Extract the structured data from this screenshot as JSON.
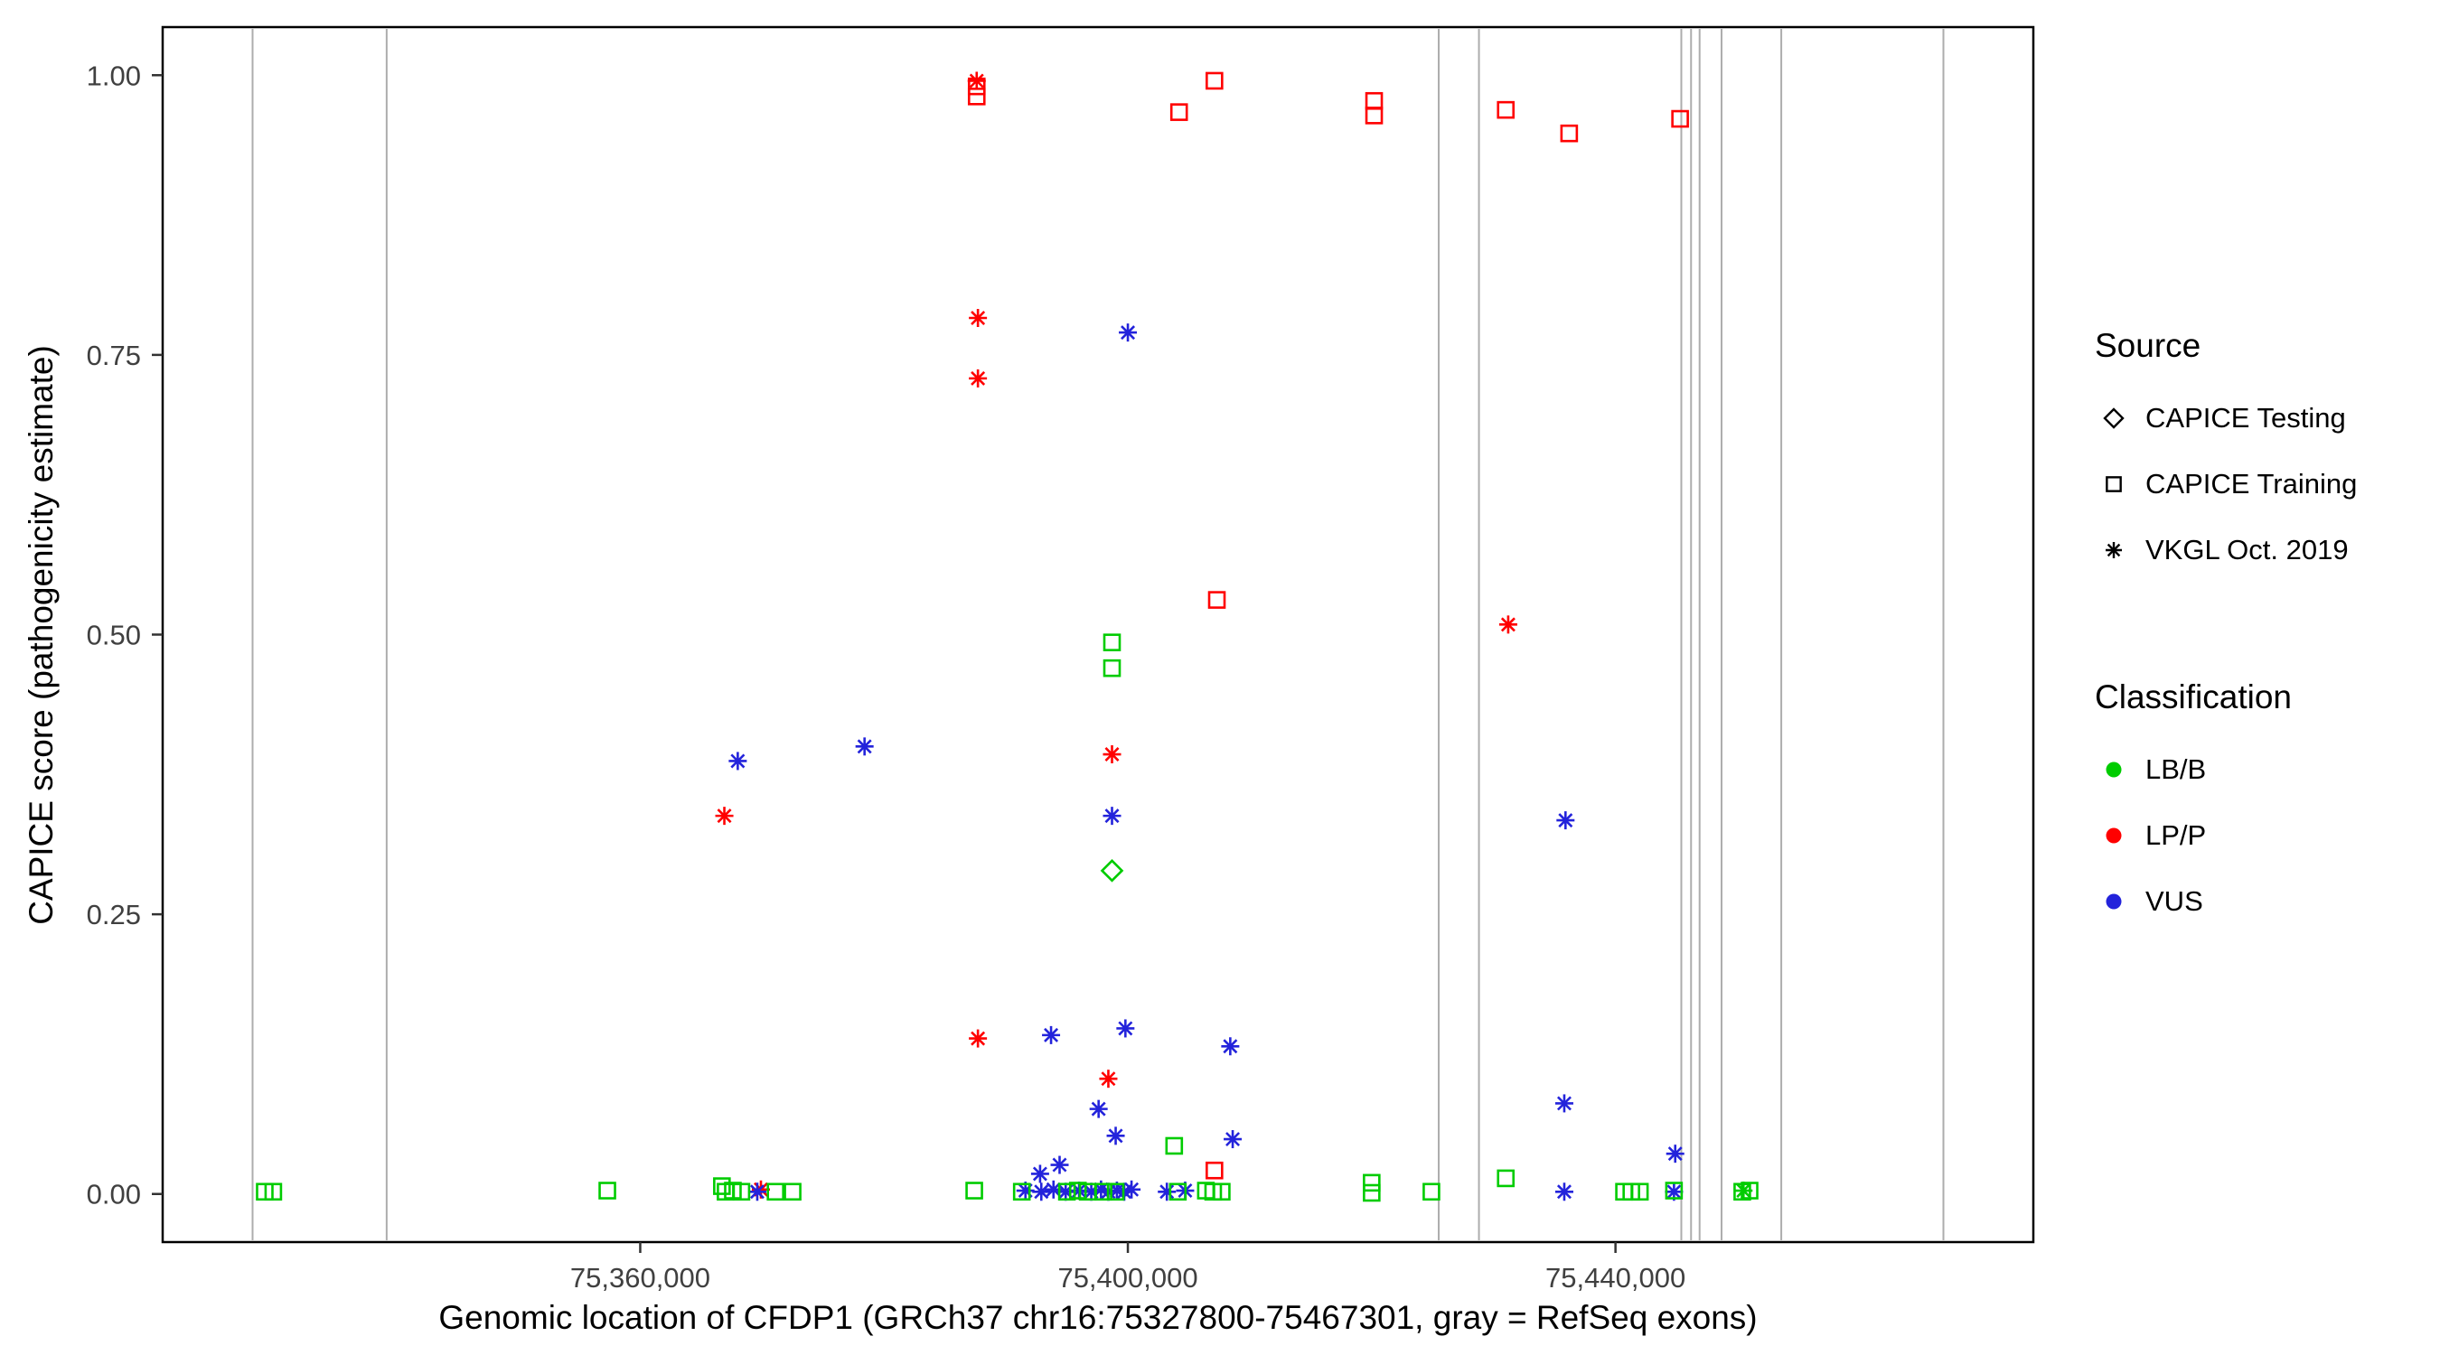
{
  "colors": {
    "LB/B": "#00CC00",
    "LP/P": "#FF0000",
    "VUS": "#2323DB",
    "exon": "#ADADAD",
    "tick_text": "#404040",
    "panel_border": "#000000",
    "legend_icon": "#000000"
  },
  "legend": {
    "source": {
      "title": "Source",
      "items": [
        {
          "shape": "diamond",
          "label": "CAPICE Testing"
        },
        {
          "shape": "square",
          "label": "CAPICE Training"
        },
        {
          "shape": "asterisk",
          "label": "VKGL Oct. 2019"
        }
      ]
    },
    "classification": {
      "title": "Classification",
      "items": [
        {
          "color": "#00CC00",
          "label": "LB/B"
        },
        {
          "color": "#FF0000",
          "label": "LP/P"
        },
        {
          "color": "#2323DB",
          "label": "VUS"
        }
      ]
    }
  },
  "chart_data": {
    "type": "scatter",
    "title": "",
    "xlabel": "Genomic location of CFDP1 (GRCh37 chr16:75327800-75467301, gray = RefSeq exons)",
    "ylabel": "CAPICE score (pathogenicity estimate)",
    "xlim": [
      75320825,
      75474276
    ],
    "ylim": [
      -0.043,
      1.043
    ],
    "x_ticks": [
      {
        "value": 75360000,
        "label": "75,360,000"
      },
      {
        "value": 75400000,
        "label": "75,400,000"
      },
      {
        "value": 75440000,
        "label": "75,440,000"
      }
    ],
    "y_ticks": [
      {
        "value": 0.0,
        "label": "0.00"
      },
      {
        "value": 0.25,
        "label": "0.25"
      },
      {
        "value": 0.5,
        "label": "0.50"
      },
      {
        "value": 0.75,
        "label": "0.75"
      },
      {
        "value": 1.0,
        "label": "1.00"
      }
    ],
    "exon_positions": [
      75328200,
      75339200,
      75425500,
      75428800,
      75445400,
      75446200,
      75446900,
      75448700,
      75453600,
      75466900
    ],
    "shape_to_source": {
      "diamond": "CAPICE Testing",
      "square": "CAPICE Training",
      "asterisk": "VKGL Oct. 2019"
    },
    "points_format": [
      "x_genomic",
      "capice_score",
      "shape",
      "classification"
    ],
    "points": [
      [
        75387600,
        0.995,
        "asterisk",
        "LP/P"
      ],
      [
        75387600,
        0.99,
        "square",
        "LP/P"
      ],
      [
        75387600,
        0.981,
        "square",
        "LP/P"
      ],
      [
        75404200,
        0.967,
        "square",
        "LP/P"
      ],
      [
        75407100,
        0.995,
        "square",
        "LP/P"
      ],
      [
        75420200,
        0.977,
        "square",
        "LP/P"
      ],
      [
        75420200,
        0.964,
        "square",
        "LP/P"
      ],
      [
        75431000,
        0.969,
        "square",
        "LP/P"
      ],
      [
        75436200,
        0.948,
        "square",
        "LP/P"
      ],
      [
        75445300,
        0.961,
        "square",
        "LP/P"
      ],
      [
        75387700,
        0.783,
        "asterisk",
        "LP/P"
      ],
      [
        75387700,
        0.729,
        "asterisk",
        "LP/P"
      ],
      [
        75407300,
        0.531,
        "square",
        "LP/P"
      ],
      [
        75431200,
        0.509,
        "asterisk",
        "LP/P"
      ],
      [
        75366900,
        0.338,
        "asterisk",
        "LP/P"
      ],
      [
        75398700,
        0.393,
        "asterisk",
        "LP/P"
      ],
      [
        75387700,
        0.139,
        "asterisk",
        "LP/P"
      ],
      [
        75398400,
        0.103,
        "asterisk",
        "LP/P"
      ],
      [
        75407100,
        0.021,
        "square",
        "LP/P"
      ],
      [
        75369900,
        0.004,
        "asterisk",
        "LP/P"
      ],
      [
        75368000,
        0.387,
        "asterisk",
        "VUS"
      ],
      [
        75378400,
        0.4,
        "asterisk",
        "VUS"
      ],
      [
        75400000,
        0.77,
        "asterisk",
        "VUS"
      ],
      [
        75398700,
        0.338,
        "asterisk",
        "VUS"
      ],
      [
        75393700,
        0.142,
        "asterisk",
        "VUS"
      ],
      [
        75399800,
        0.148,
        "asterisk",
        "VUS"
      ],
      [
        75408400,
        0.132,
        "asterisk",
        "VUS"
      ],
      [
        75397600,
        0.076,
        "asterisk",
        "VUS"
      ],
      [
        75399000,
        0.052,
        "asterisk",
        "VUS"
      ],
      [
        75408600,
        0.049,
        "asterisk",
        "VUS"
      ],
      [
        75435900,
        0.334,
        "asterisk",
        "VUS"
      ],
      [
        75435800,
        0.081,
        "asterisk",
        "VUS"
      ],
      [
        75444900,
        0.036,
        "asterisk",
        "VUS"
      ],
      [
        75394400,
        0.026,
        "asterisk",
        "VUS"
      ],
      [
        75392800,
        0.018,
        "asterisk",
        "VUS"
      ],
      [
        75369600,
        0.002,
        "asterisk",
        "VUS"
      ],
      [
        75391600,
        0.003,
        "asterisk",
        "VUS"
      ],
      [
        75392900,
        0.002,
        "asterisk",
        "VUS"
      ],
      [
        75393900,
        0.004,
        "asterisk",
        "VUS"
      ],
      [
        75394900,
        0.002,
        "asterisk",
        "VUS"
      ],
      [
        75396000,
        0.003,
        "asterisk",
        "VUS"
      ],
      [
        75397000,
        0.002,
        "asterisk",
        "VUS"
      ],
      [
        75397800,
        0.004,
        "asterisk",
        "VUS"
      ],
      [
        75398400,
        0.002,
        "asterisk",
        "VUS"
      ],
      [
        75399100,
        0.003,
        "asterisk",
        "VUS"
      ],
      [
        75399700,
        0.002,
        "asterisk",
        "VUS"
      ],
      [
        75400300,
        0.004,
        "asterisk",
        "VUS"
      ],
      [
        75403200,
        0.002,
        "asterisk",
        "VUS"
      ],
      [
        75404700,
        0.003,
        "asterisk",
        "VUS"
      ],
      [
        75435800,
        0.002,
        "asterisk",
        "VUS"
      ],
      [
        75444800,
        0.002,
        "asterisk",
        "VUS"
      ],
      [
        75329200,
        0.002,
        "square",
        "LB/B"
      ],
      [
        75329900,
        0.002,
        "square",
        "LB/B"
      ],
      [
        75357300,
        0.003,
        "square",
        "LB/B"
      ],
      [
        75366700,
        0.007,
        "square",
        "LB/B"
      ],
      [
        75367000,
        0.002,
        "square",
        "LB/B"
      ],
      [
        75367600,
        0.003,
        "square",
        "LB/B"
      ],
      [
        75368300,
        0.002,
        "square",
        "LB/B"
      ],
      [
        75371100,
        0.002,
        "square",
        "LB/B"
      ],
      [
        75372500,
        0.002,
        "square",
        "LB/B"
      ],
      [
        75387400,
        0.003,
        "square",
        "LB/B"
      ],
      [
        75391300,
        0.002,
        "square",
        "LB/B"
      ],
      [
        75395000,
        0.002,
        "square",
        "LB/B"
      ],
      [
        75395900,
        0.003,
        "square",
        "LB/B"
      ],
      [
        75396700,
        0.002,
        "square",
        "LB/B"
      ],
      [
        75398000,
        0.002,
        "square",
        "LB/B"
      ],
      [
        75399000,
        0.002,
        "square",
        "LB/B"
      ],
      [
        75403800,
        0.043,
        "square",
        "LB/B"
      ],
      [
        75404100,
        0.002,
        "square",
        "LB/B"
      ],
      [
        75406400,
        0.003,
        "square",
        "LB/B"
      ],
      [
        75407000,
        0.002,
        "square",
        "LB/B"
      ],
      [
        75407700,
        0.002,
        "square",
        "LB/B"
      ],
      [
        75420000,
        0.01,
        "square",
        "LB/B"
      ],
      [
        75420000,
        0.001,
        "square",
        "LB/B"
      ],
      [
        75424900,
        0.002,
        "square",
        "LB/B"
      ],
      [
        75431000,
        0.014,
        "square",
        "LB/B"
      ],
      [
        75440700,
        0.002,
        "square",
        "LB/B"
      ],
      [
        75441300,
        0.002,
        "square",
        "LB/B"
      ],
      [
        75442000,
        0.002,
        "square",
        "LB/B"
      ],
      [
        75444800,
        0.003,
        "square",
        "LB/B"
      ],
      [
        75450400,
        0.002,
        "square",
        "LB/B"
      ],
      [
        75451000,
        0.003,
        "square",
        "LB/B"
      ],
      [
        75398700,
        0.493,
        "square",
        "LB/B"
      ],
      [
        75398700,
        0.47,
        "square",
        "LB/B"
      ],
      [
        75398700,
        0.289,
        "diamond",
        "LB/B"
      ],
      [
        75450500,
        0.003,
        "asterisk",
        "LB/B"
      ]
    ],
    "legend_position": "right",
    "grid": false
  }
}
